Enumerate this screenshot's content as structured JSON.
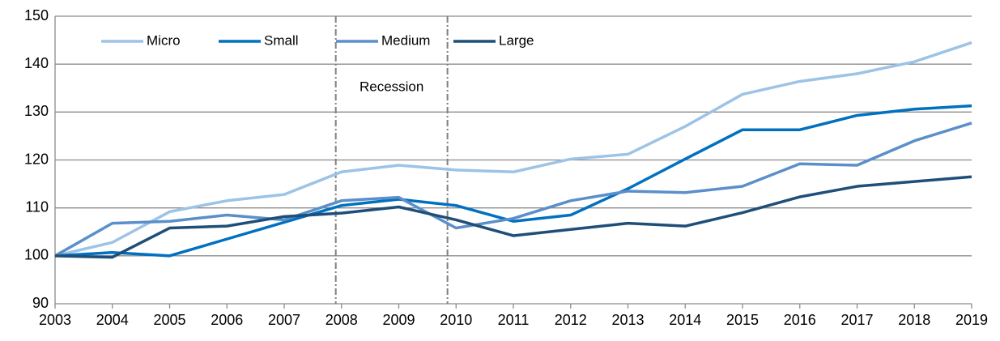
{
  "chart_data": {
    "type": "line",
    "x": [
      2003,
      2004,
      2005,
      2006,
      2007,
      2008,
      2009,
      2010,
      2011,
      2012,
      2013,
      2014,
      2015,
      2016,
      2017,
      2018,
      2019
    ],
    "series": [
      {
        "name": "Micro",
        "color": "#9dc3e6",
        "values": [
          100,
          102.8,
          109.2,
          111.5,
          112.8,
          117.5,
          118.9,
          117.9,
          117.5,
          120.2,
          121.2,
          127.0,
          133.7,
          136.4,
          138.0,
          140.5,
          144.5
        ]
      },
      {
        "name": "Small",
        "color": "#0070c0",
        "values": [
          100,
          100.7,
          100.0,
          103.5,
          107.0,
          110.5,
          111.8,
          110.5,
          107.2,
          108.5,
          114.0,
          120.2,
          126.3,
          126.3,
          129.3,
          130.6,
          131.3
        ]
      },
      {
        "name": "Medium",
        "color": "#5b8fc9",
        "values": [
          100,
          106.8,
          107.2,
          108.5,
          107.5,
          111.5,
          112.2,
          105.8,
          107.8,
          111.5,
          113.5,
          113.2,
          114.5,
          119.2,
          118.9,
          124.0,
          127.7
        ]
      },
      {
        "name": "Large",
        "color": "#1f4e79",
        "values": [
          100,
          99.7,
          105.8,
          106.2,
          108.2,
          108.9,
          110.2,
          107.5,
          104.2,
          105.5,
          106.8,
          106.2,
          109.0,
          112.3,
          114.5,
          115.5,
          116.5
        ]
      }
    ],
    "xlim": [
      2003,
      2019
    ],
    "xticks": [
      2003,
      2004,
      2005,
      2006,
      2007,
      2008,
      2009,
      2010,
      2011,
      2012,
      2013,
      2014,
      2015,
      2016,
      2017,
      2018,
      2019
    ],
    "ylim": [
      90,
      150
    ],
    "yticks": [
      90,
      100,
      110,
      120,
      130,
      140,
      150
    ],
    "grid": true,
    "legend": "top-left",
    "recession": {
      "label": "Recession",
      "x": [
        2007.9,
        2009.85
      ]
    }
  }
}
